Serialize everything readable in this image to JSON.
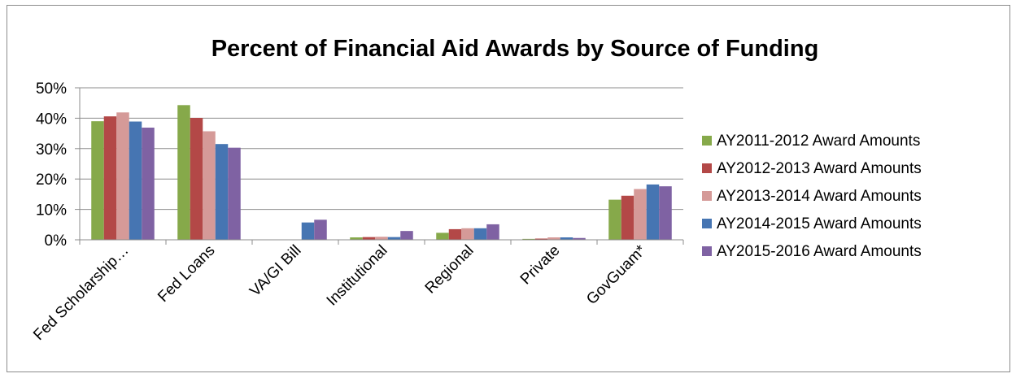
{
  "chart_data": {
    "type": "bar",
    "title": "Percent of Financial Aid Awards  by Source of Funding",
    "xlabel": "",
    "ylabel": "",
    "ylim": [
      0,
      50
    ],
    "yticks": [
      "0%",
      "10%",
      "20%",
      "30%",
      "40%",
      "50%"
    ],
    "ytick_values": [
      0,
      10,
      20,
      30,
      40,
      50
    ],
    "grid": true,
    "legend_position": "right",
    "categories": [
      "Fed Scholarship…",
      "Fed Loans",
      "VA/GI Bill",
      "Institutional",
      "Regional",
      "Private",
      "GovGuam*"
    ],
    "series": [
      {
        "name": "AY2011-2012 Award Amounts",
        "color": "#86a94a",
        "values": [
          39,
          44.3,
          0,
          0.8,
          2.3,
          0.3,
          13.2
        ]
      },
      {
        "name": "AY2012-2013 Award Amounts",
        "color": "#b34847",
        "values": [
          40.6,
          40.1,
          0,
          0.9,
          3.5,
          0.4,
          14.5
        ]
      },
      {
        "name": "AY2013-2014 Award Amounts",
        "color": "#d59a98",
        "values": [
          41.9,
          35.7,
          0,
          1,
          3.8,
          0.8,
          16.7
        ]
      },
      {
        "name": "AY2014-2015 Award Amounts",
        "color": "#4675b2",
        "values": [
          38.9,
          31.5,
          5.7,
          0.9,
          3.8,
          0.8,
          18.2
        ]
      },
      {
        "name": "AY2015-2016 Award Amounts",
        "color": "#7f62a3",
        "values": [
          36.9,
          30.3,
          6.6,
          2.9,
          5.1,
          0.6,
          17.6
        ]
      }
    ]
  }
}
